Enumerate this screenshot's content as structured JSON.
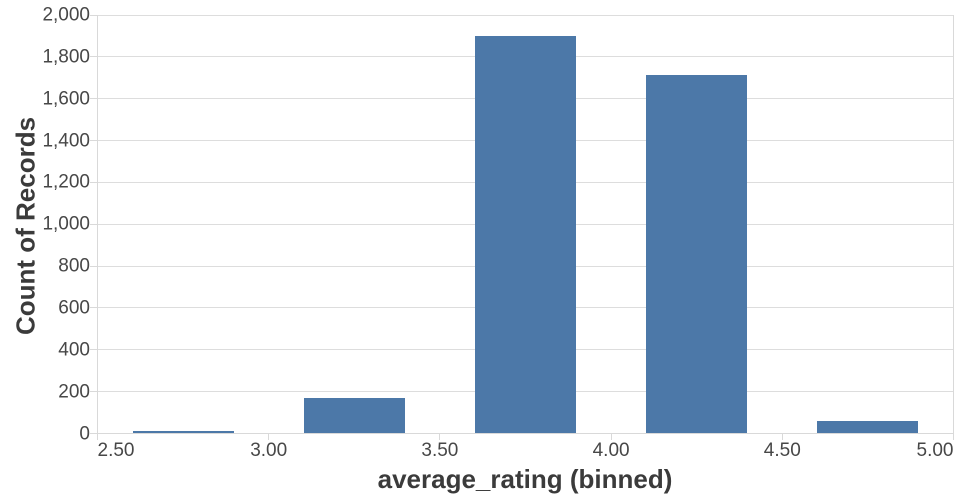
{
  "chart_data": {
    "type": "bar",
    "title": "",
    "xlabel": "average_rating (binned)",
    "ylabel": "Count of Records",
    "bin_edges": [
      2.5,
      3.0,
      3.5,
      4.0,
      4.5,
      5.0
    ],
    "x_tick_labels": [
      "2.50",
      "3.00",
      "3.50",
      "4.00",
      "4.50",
      "5.00"
    ],
    "categories": [
      "2.50-3.00",
      "3.00-3.50",
      "3.50-4.00",
      "4.00-4.50",
      "4.50-5.00"
    ],
    "values": [
      12,
      170,
      1900,
      1715,
      62
    ],
    "ylim": [
      0,
      2000
    ],
    "y_ticks": [
      0,
      200,
      400,
      600,
      800,
      1000,
      1200,
      1400,
      1600,
      1800,
      2000
    ],
    "y_tick_labels": [
      "0",
      "200",
      "400",
      "600",
      "800",
      "1,000",
      "1,200",
      "1,400",
      "1,600",
      "1,800",
      "2,000"
    ],
    "grid": true,
    "legend": false,
    "colors": {
      "bar": "#4c78a8",
      "grid": "#dddddd",
      "domain": "#d9d9d9",
      "tick": "#d9d9d9",
      "tick_label": "#474747",
      "axis_title": "#3b3b3b",
      "background": "#ffffff"
    }
  }
}
